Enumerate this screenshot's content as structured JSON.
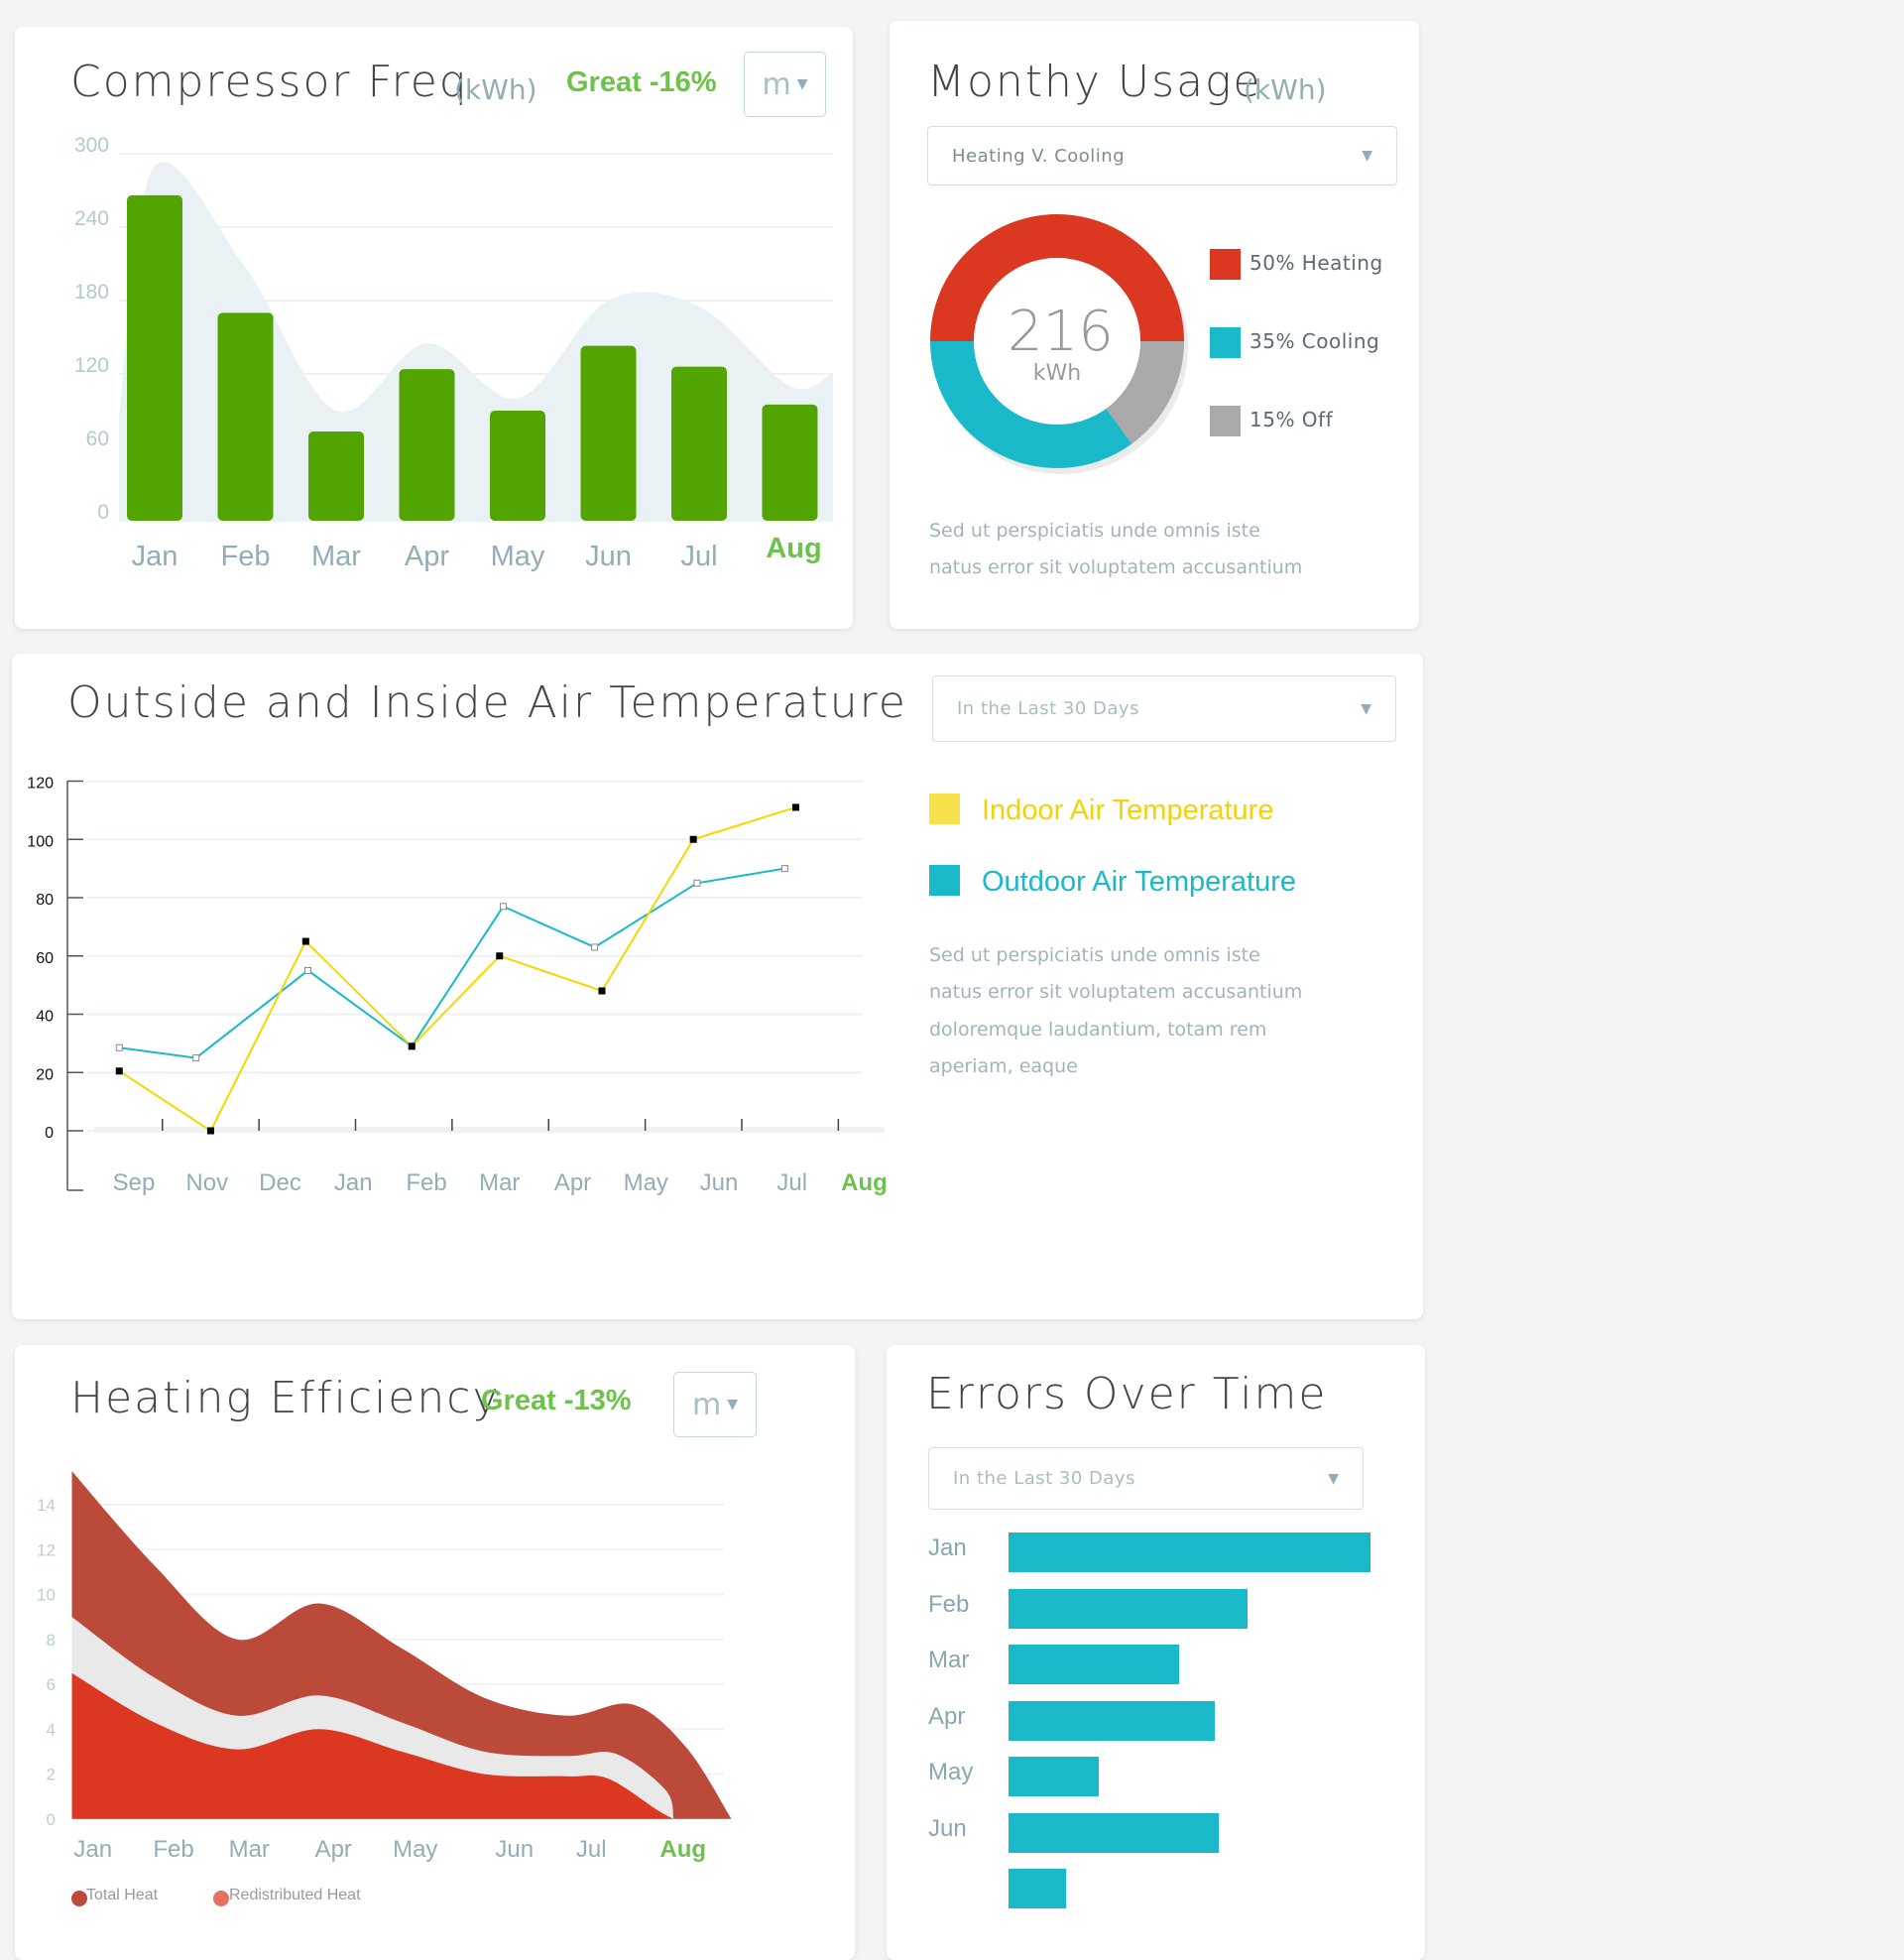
{
  "compressor": {
    "title": "Compressor Freq",
    "unit": "(kWh)",
    "status": "Great -16%",
    "period_button": "m",
    "colors": {
      "bar": "#52a500",
      "trend": "#e9f1f5",
      "highlight": "#6cc24a",
      "axis_label": "#93adb8"
    },
    "chart_data": {
      "type": "bar",
      "categories": [
        "Jan",
        "Feb",
        "Mar",
        "Apr",
        "May",
        "Jun",
        "Jul",
        "Aug"
      ],
      "values": [
        266,
        170,
        73,
        124,
        90,
        143,
        126,
        95
      ],
      "trend": [
        290,
        207,
        90,
        145,
        100,
        180,
        175,
        110
      ],
      "yticks": [
        0,
        60,
        120,
        180,
        240,
        300
      ],
      "ylim": [
        0,
        300
      ],
      "highlight_category": "Aug"
    }
  },
  "monthly": {
    "title": "Monthy Usage",
    "unit": "(kWh)",
    "dropdown": "Heating V. Cooling",
    "center_value": "216",
    "center_unit": "kWh",
    "chart_data": {
      "type": "pie",
      "slices": [
        {
          "label": "50% Heating",
          "value": 50,
          "color": "#dc3720"
        },
        {
          "label": "15% Off",
          "value": 15,
          "color": "#a9a9a9"
        },
        {
          "label": "35% Cooling",
          "value": 35,
          "color": "#19b9ca"
        }
      ]
    },
    "legend": [
      {
        "label": "50% Heating",
        "color": "#dc3720"
      },
      {
        "label": "35% Cooling",
        "color": "#19b9ca"
      },
      {
        "label": "15% Off",
        "color": "#a9a9a9"
      }
    ],
    "description": [
      "Sed ut perspiciatis unde omnis iste",
      "natus error sit voluptatem accusantium"
    ]
  },
  "temperature": {
    "title": "Outside and Inside Air Temperature",
    "dropdown": "In the Last 30 Days",
    "legend": [
      {
        "label": "Indoor Air Temperature",
        "color": "#f7e04a",
        "text_color": "#f2d20a"
      },
      {
        "label": "Outdoor Air Temperature",
        "color": "#19b9ca",
        "text_color": "#19b9ca"
      }
    ],
    "description": [
      "Sed ut perspiciatis unde omnis iste",
      "natus error sit voluptatem accusantium",
      "doloremque laudantium, totam rem",
      "aperiam, eaque"
    ],
    "chart_data": {
      "type": "line",
      "categories": [
        "Sep",
        "Nov",
        "Dec",
        "Jan",
        "Feb",
        "Mar",
        "Apr",
        "May",
        "Jun",
        "Jul",
        "Aug"
      ],
      "yticks": [
        0,
        20,
        40,
        60,
        80,
        100,
        120
      ],
      "ylim": [
        0,
        120
      ],
      "highlight_category": "Aug",
      "series": [
        {
          "name": "Indoor Air Temperature",
          "color": "#f5d800",
          "x": [
            -0.2,
            1.05,
            2.35,
            3.8,
            5.0,
            6.4,
            7.65,
            9.05
          ],
          "values": [
            20.5,
            0,
            65,
            29,
            60,
            48,
            100,
            111
          ]
        },
        {
          "name": "Outdoor Air Temperature",
          "color": "#19b9ca",
          "x": [
            -0.2,
            0.85,
            2.38,
            3.8,
            5.05,
            6.3,
            7.7,
            8.9
          ],
          "values": [
            28.5,
            25,
            55,
            29,
            77,
            63,
            85,
            90
          ]
        }
      ]
    }
  },
  "heating": {
    "title": "Heating Efficiency",
    "status": "Great -13%",
    "period_button": "m",
    "legend": [
      {
        "label": "Total Heat",
        "color": "#bb4a3a"
      },
      {
        "label": "Redistributed Heat",
        "color": "#e57060"
      }
    ],
    "chart_data": {
      "type": "area",
      "categories": [
        "Jan",
        "Feb",
        "Mar",
        "Apr",
        "May",
        "Jun",
        "Jul",
        "Aug"
      ],
      "yticks": [
        0,
        2,
        4,
        6,
        8,
        10,
        12,
        14
      ],
      "ylim": [
        0,
        15.5
      ],
      "highlight_category": "Aug",
      "series": [
        {
          "name": "Total Heat",
          "color": "#bb4a3a",
          "points": [
            [
              0,
              15.5
            ],
            [
              1,
              11.3
            ],
            [
              2,
              8.0
            ],
            [
              3,
              9.6
            ],
            [
              4,
              7.6
            ],
            [
              5,
              5.4
            ],
            [
              6,
              4.6
            ],
            [
              6.8,
              5.1
            ],
            [
              7.45,
              3.2
            ],
            [
              8,
              0
            ]
          ]
        },
        {
          "name": "Band",
          "color": "#e9e9e9",
          "points": [
            [
              0,
              9.0
            ],
            [
              1,
              6.3
            ],
            [
              2,
              4.6
            ],
            [
              3,
              5.5
            ],
            [
              4,
              4.3
            ],
            [
              5,
              3.0
            ],
            [
              6,
              2.8
            ],
            [
              6.6,
              2.9
            ],
            [
              7.2,
              1.3
            ],
            [
              7.3,
              0
            ]
          ]
        },
        {
          "name": "Redistributed Heat",
          "color": "#dc3720",
          "points": [
            [
              0,
              6.5
            ],
            [
              1,
              4.3
            ],
            [
              2,
              3.1
            ],
            [
              3,
              4.0
            ],
            [
              4,
              3.0
            ],
            [
              5,
              2.0
            ],
            [
              6,
              1.9
            ],
            [
              6.5,
              1.8
            ],
            [
              7.1,
              0.4
            ],
            [
              7.3,
              0
            ]
          ]
        }
      ]
    }
  },
  "errors": {
    "title": "Errors Over Time",
    "dropdown": "In the Last 30 Days",
    "color": "#19b9ca",
    "chart_data": {
      "type": "bar",
      "orientation": "horizontal",
      "categories": [
        "Jan",
        "Feb",
        "Mar",
        "Apr",
        "May",
        "Jun",
        ""
      ],
      "values_percent_of_max": [
        100,
        66,
        47,
        57,
        25,
        58,
        16
      ]
    }
  }
}
